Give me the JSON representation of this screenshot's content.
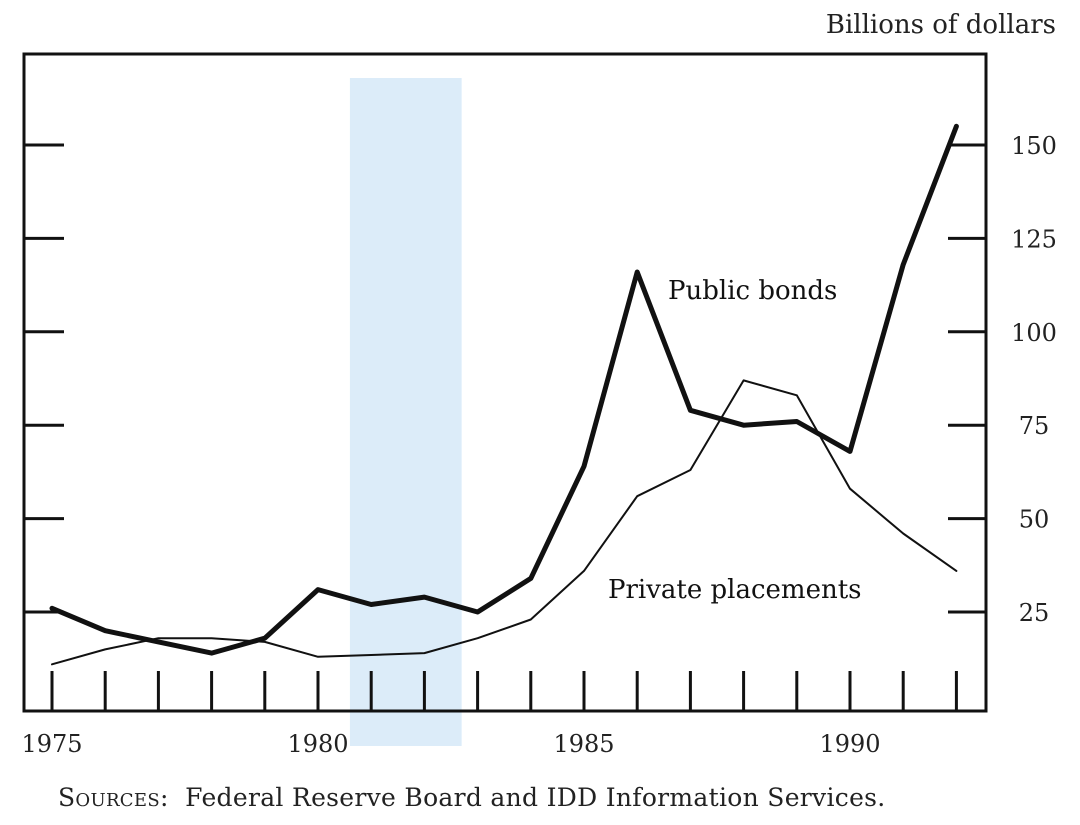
{
  "chart_data": {
    "type": "line",
    "ylabel": "Billions of dollars",
    "xlim": [
      1975,
      1992.5
    ],
    "ylim": [
      0,
      175
    ],
    "x_ticks": [
      1975,
      1980,
      1985,
      1990
    ],
    "y_ticks": [
      25,
      50,
      75,
      100,
      125,
      150
    ],
    "y_axis_side": "right",
    "shaded_period": {
      "from": 1980.6,
      "to": 1982.7,
      "color": "#d6e9f8"
    },
    "series": [
      {
        "name": "Public bonds",
        "style": "thick",
        "x": [
          1975,
          1976,
          1977,
          1978,
          1979,
          1980,
          1981,
          1982,
          1983,
          1984,
          1985,
          1986,
          1987,
          1988,
          1989,
          1990,
          1991,
          1992
        ],
        "y": [
          26,
          20,
          17,
          14,
          18,
          31,
          27,
          29,
          25,
          34,
          64,
          116,
          79,
          75,
          76,
          68,
          118,
          155
        ]
      },
      {
        "name": "Private placements",
        "style": "thin",
        "x": [
          1975,
          1976,
          1977,
          1978,
          1979,
          1980,
          1981,
          1982,
          1983,
          1984,
          1985,
          1986,
          1987,
          1988,
          1989,
          1990,
          1991,
          1992
        ],
        "y": [
          11,
          15,
          18,
          18,
          17,
          13,
          13.5,
          14,
          18,
          23,
          36,
          56,
          63,
          87,
          83,
          58,
          46,
          36
        ]
      }
    ],
    "annotations": [
      "Public bonds",
      "Private placements"
    ]
  },
  "footer": {
    "sources_label": "Sources:",
    "sources_text": "Federal Reserve Board and IDD Information Services."
  }
}
